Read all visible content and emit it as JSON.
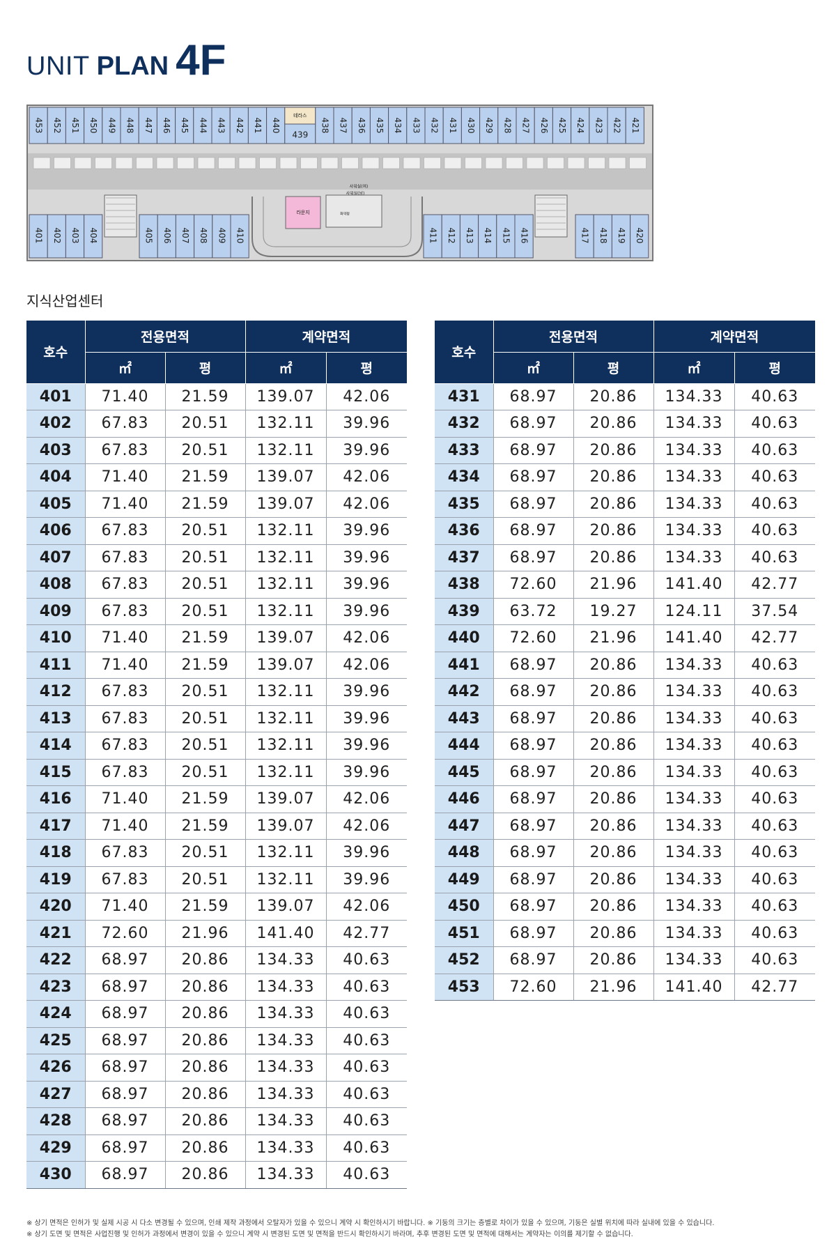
{
  "header": {
    "title_unit": "UNIT",
    "title_plan": "PLAN",
    "title_floor": "4F"
  },
  "floor_plan": {
    "top_units": [
      "453",
      "452",
      "451",
      "450",
      "449",
      "448",
      "447",
      "446",
      "445",
      "444",
      "443",
      "442",
      "441",
      "440",
      "438",
      "437",
      "436",
      "435",
      "434",
      "433",
      "432",
      "431",
      "430",
      "429",
      "428",
      "427",
      "426",
      "425",
      "424",
      "423",
      "422",
      "421"
    ],
    "unit_439": "439",
    "terrace_label": "테라스",
    "bottom_left_units": [
      "401",
      "402",
      "403",
      "404",
      "405",
      "406",
      "407",
      "408",
      "409",
      "410"
    ],
    "bottom_right_units": [
      "411",
      "412",
      "413",
      "414",
      "415",
      "416",
      "417",
      "418",
      "419",
      "420"
    ],
    "lounge_label": "라운지",
    "restroom_f": "사워실(여)",
    "restroom_m": "사워실(남)",
    "small_label": "화약정"
  },
  "section_label": "지식산업센터",
  "table": {
    "header_ho": "호수",
    "header_exclusive": "전용면적",
    "header_contract": "계약면적",
    "unit_sqm": "㎡",
    "unit_pyeong": "평",
    "left_rows": [
      [
        "401",
        "71.40",
        "21.59",
        "139.07",
        "42.06"
      ],
      [
        "402",
        "67.83",
        "20.51",
        "132.11",
        "39.96"
      ],
      [
        "403",
        "67.83",
        "20.51",
        "132.11",
        "39.96"
      ],
      [
        "404",
        "71.40",
        "21.59",
        "139.07",
        "42.06"
      ],
      [
        "405",
        "71.40",
        "21.59",
        "139.07",
        "42.06"
      ],
      [
        "406",
        "67.83",
        "20.51",
        "132.11",
        "39.96"
      ],
      [
        "407",
        "67.83",
        "20.51",
        "132.11",
        "39.96"
      ],
      [
        "408",
        "67.83",
        "20.51",
        "132.11",
        "39.96"
      ],
      [
        "409",
        "67.83",
        "20.51",
        "132.11",
        "39.96"
      ],
      [
        "410",
        "71.40",
        "21.59",
        "139.07",
        "42.06"
      ],
      [
        "411",
        "71.40",
        "21.59",
        "139.07",
        "42.06"
      ],
      [
        "412",
        "67.83",
        "20.51",
        "132.11",
        "39.96"
      ],
      [
        "413",
        "67.83",
        "20.51",
        "132.11",
        "39.96"
      ],
      [
        "414",
        "67.83",
        "20.51",
        "132.11",
        "39.96"
      ],
      [
        "415",
        "67.83",
        "20.51",
        "132.11",
        "39.96"
      ],
      [
        "416",
        "71.40",
        "21.59",
        "139.07",
        "42.06"
      ],
      [
        "417",
        "71.40",
        "21.59",
        "139.07",
        "42.06"
      ],
      [
        "418",
        "67.83",
        "20.51",
        "132.11",
        "39.96"
      ],
      [
        "419",
        "67.83",
        "20.51",
        "132.11",
        "39.96"
      ],
      [
        "420",
        "71.40",
        "21.59",
        "139.07",
        "42.06"
      ],
      [
        "421",
        "72.60",
        "21.96",
        "141.40",
        "42.77"
      ],
      [
        "422",
        "68.97",
        "20.86",
        "134.33",
        "40.63"
      ],
      [
        "423",
        "68.97",
        "20.86",
        "134.33",
        "40.63"
      ],
      [
        "424",
        "68.97",
        "20.86",
        "134.33",
        "40.63"
      ],
      [
        "425",
        "68.97",
        "20.86",
        "134.33",
        "40.63"
      ],
      [
        "426",
        "68.97",
        "20.86",
        "134.33",
        "40.63"
      ],
      [
        "427",
        "68.97",
        "20.86",
        "134.33",
        "40.63"
      ],
      [
        "428",
        "68.97",
        "20.86",
        "134.33",
        "40.63"
      ],
      [
        "429",
        "68.97",
        "20.86",
        "134.33",
        "40.63"
      ],
      [
        "430",
        "68.97",
        "20.86",
        "134.33",
        "40.63"
      ]
    ],
    "right_rows": [
      [
        "431",
        "68.97",
        "20.86",
        "134.33",
        "40.63"
      ],
      [
        "432",
        "68.97",
        "20.86",
        "134.33",
        "40.63"
      ],
      [
        "433",
        "68.97",
        "20.86",
        "134.33",
        "40.63"
      ],
      [
        "434",
        "68.97",
        "20.86",
        "134.33",
        "40.63"
      ],
      [
        "435",
        "68.97",
        "20.86",
        "134.33",
        "40.63"
      ],
      [
        "436",
        "68.97",
        "20.86",
        "134.33",
        "40.63"
      ],
      [
        "437",
        "68.97",
        "20.86",
        "134.33",
        "40.63"
      ],
      [
        "438",
        "72.60",
        "21.96",
        "141.40",
        "42.77"
      ],
      [
        "439",
        "63.72",
        "19.27",
        "124.11",
        "37.54"
      ],
      [
        "440",
        "72.60",
        "21.96",
        "141.40",
        "42.77"
      ],
      [
        "441",
        "68.97",
        "20.86",
        "134.33",
        "40.63"
      ],
      [
        "442",
        "68.97",
        "20.86",
        "134.33",
        "40.63"
      ],
      [
        "443",
        "68.97",
        "20.86",
        "134.33",
        "40.63"
      ],
      [
        "444",
        "68.97",
        "20.86",
        "134.33",
        "40.63"
      ],
      [
        "445",
        "68.97",
        "20.86",
        "134.33",
        "40.63"
      ],
      [
        "446",
        "68.97",
        "20.86",
        "134.33",
        "40.63"
      ],
      [
        "447",
        "68.97",
        "20.86",
        "134.33",
        "40.63"
      ],
      [
        "448",
        "68.97",
        "20.86",
        "134.33",
        "40.63"
      ],
      [
        "449",
        "68.97",
        "20.86",
        "134.33",
        "40.63"
      ],
      [
        "450",
        "68.97",
        "20.86",
        "134.33",
        "40.63"
      ],
      [
        "451",
        "68.97",
        "20.86",
        "134.33",
        "40.63"
      ],
      [
        "452",
        "68.97",
        "20.86",
        "134.33",
        "40.63"
      ],
      [
        "453",
        "72.60",
        "21.96",
        "141.40",
        "42.77"
      ]
    ]
  },
  "notes": [
    "※ 상기 면적은 인허가 및 실제 시공 시 다소 변경될 수 있으며, 인쇄 제작 과정에서 오탈자가 있을 수 있으니 계약 시 확인하시기 바랍니다. ※ 기둥의 크기는 층별로 차이가 있을 수 있으며, 기둥은 실별 위치에 따라 실내에 있을 수 있습니다.",
    "※ 상기 도면 및 면적은 사업진행 및 인허가 과정에서 변경이 있을 수 있으니 계약 시 변경된 도면 및 면적을 반드시 확인하시기 바라며, 추후 변경된 도면 및 면적에 대해서는 계약자는 이의를 제기할 수 없습니다."
  ]
}
